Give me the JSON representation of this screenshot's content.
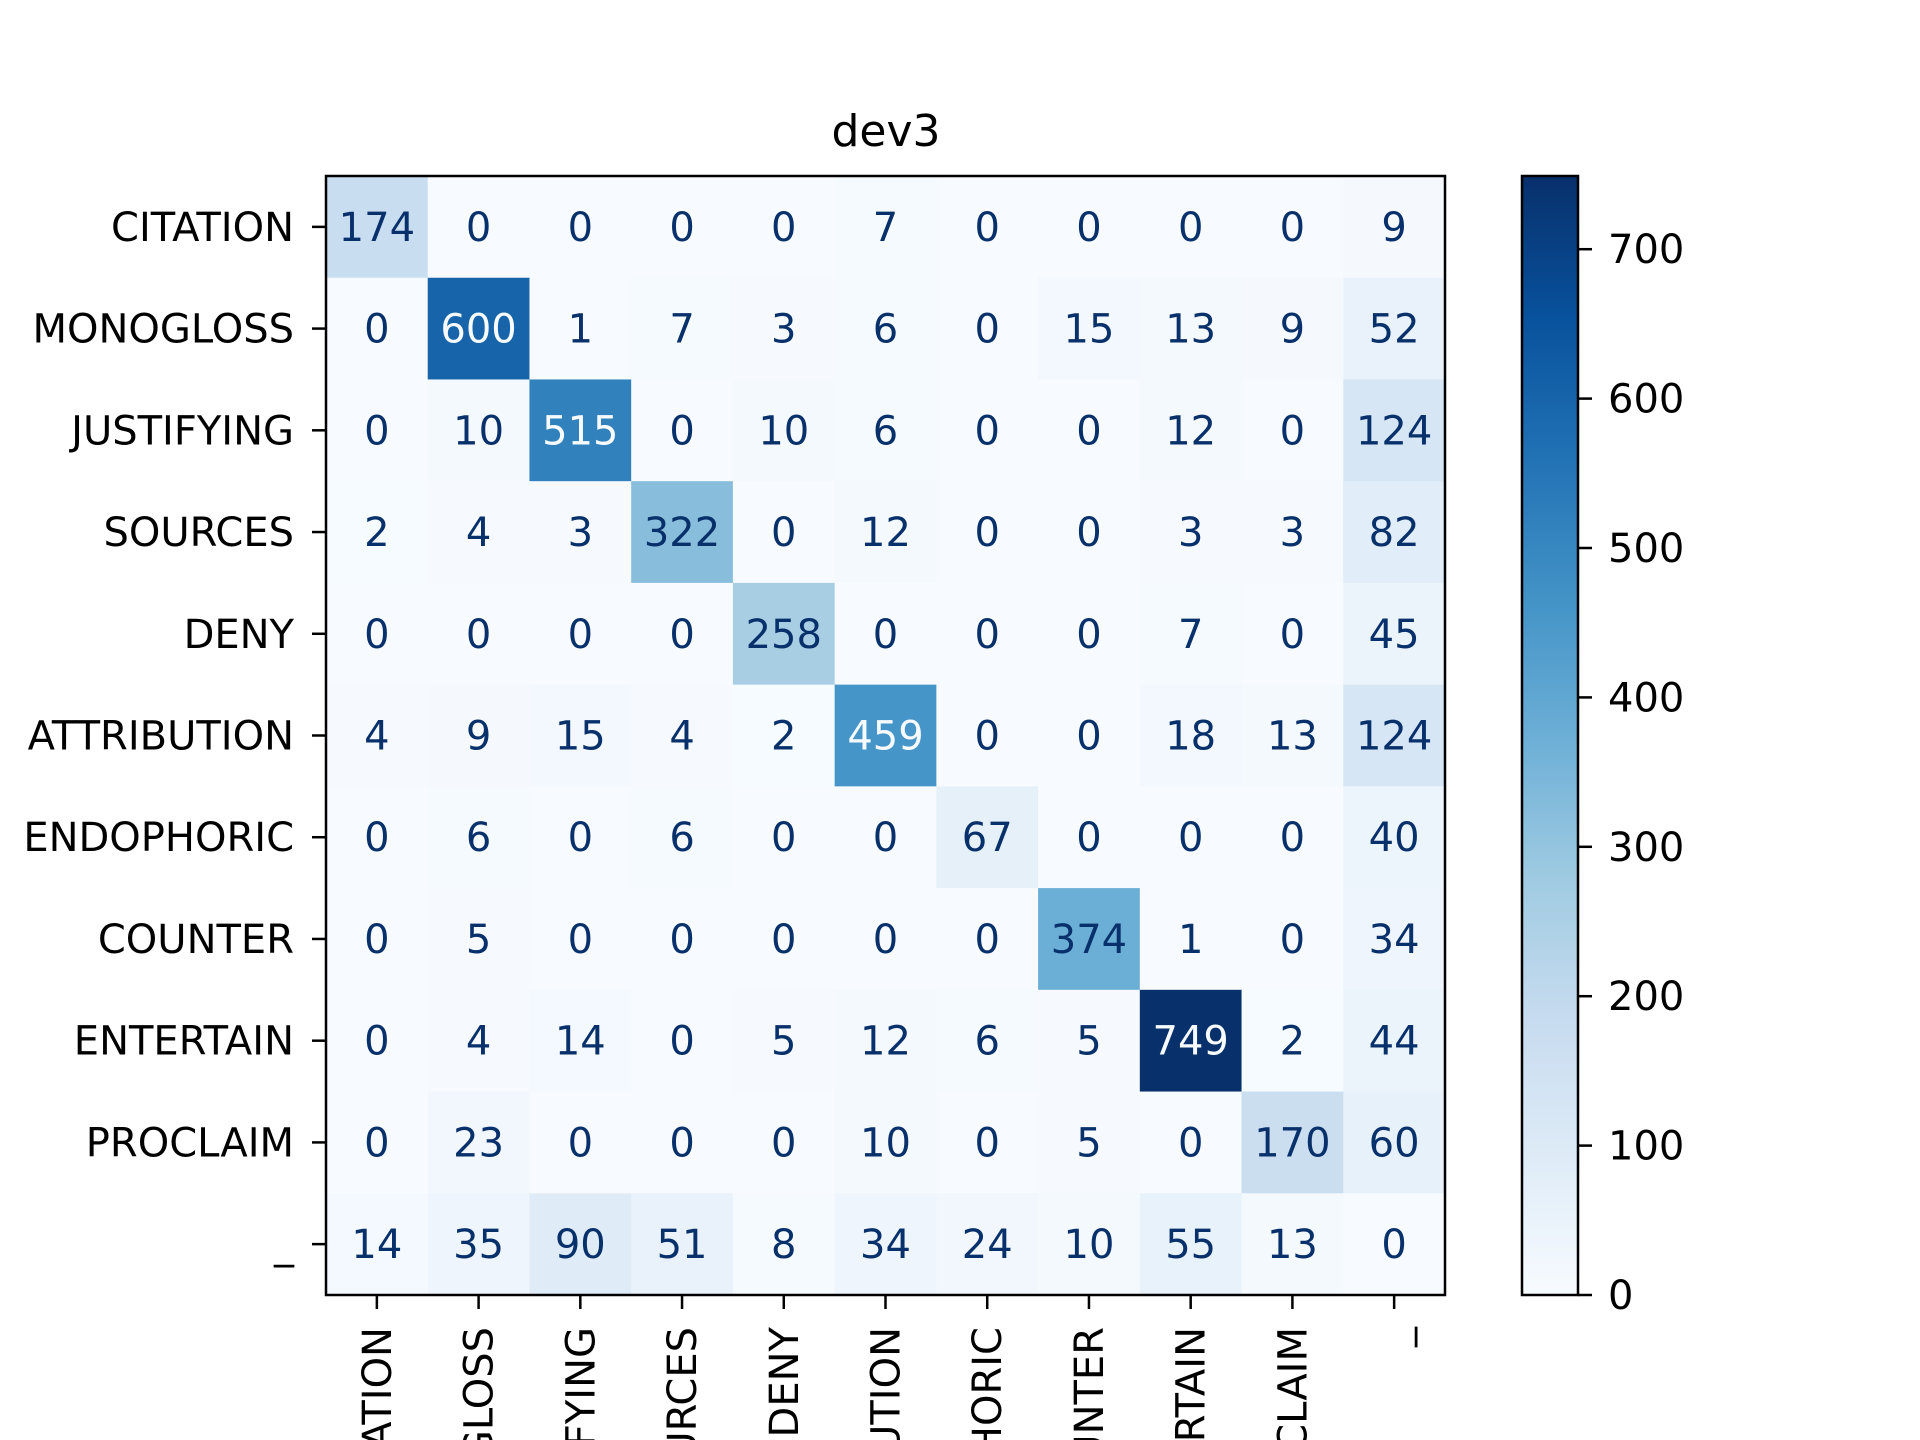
{
  "chart_data": {
    "type": "heatmap",
    "title": "dev3",
    "xlabel": "",
    "ylabel": "",
    "colormap": "Blues",
    "color_range": [
      0,
      749
    ],
    "row_labels": [
      "CITATION",
      "MONOGLOSS",
      "JUSTIFYING",
      "SOURCES",
      "DENY",
      "ATTRIBUTION",
      "ENDOPHORIC",
      "COUNTER",
      "ENTERTAIN",
      "PROCLAIM",
      "_"
    ],
    "col_labels": [
      "ATION",
      "GLOSS",
      "IFYING",
      "URCES",
      "DENY",
      "UTION",
      "HORIC",
      "UNTER",
      "RTAIN",
      "CLAIM",
      "_"
    ],
    "values": [
      [
        174,
        0,
        0,
        0,
        0,
        7,
        0,
        0,
        0,
        0,
        9
      ],
      [
        0,
        600,
        1,
        7,
        3,
        6,
        0,
        15,
        13,
        9,
        52
      ],
      [
        0,
        10,
        515,
        0,
        10,
        6,
        0,
        0,
        12,
        0,
        124
      ],
      [
        2,
        4,
        3,
        322,
        0,
        12,
        0,
        0,
        3,
        3,
        82
      ],
      [
        0,
        0,
        0,
        0,
        258,
        0,
        0,
        0,
        7,
        0,
        45
      ],
      [
        4,
        9,
        15,
        4,
        2,
        459,
        0,
        0,
        18,
        13,
        124
      ],
      [
        0,
        6,
        0,
        6,
        0,
        0,
        67,
        0,
        0,
        0,
        40
      ],
      [
        0,
        5,
        0,
        0,
        0,
        0,
        0,
        374,
        1,
        0,
        34
      ],
      [
        0,
        4,
        14,
        0,
        5,
        12,
        6,
        5,
        749,
        2,
        44
      ],
      [
        0,
        23,
        0,
        0,
        0,
        10,
        0,
        5,
        0,
        170,
        60
      ],
      [
        14,
        35,
        90,
        51,
        8,
        34,
        24,
        10,
        55,
        13,
        0
      ]
    ],
    "colorbar": {
      "ticks": [
        0,
        100,
        200,
        300,
        400,
        500,
        600,
        700
      ],
      "range": [
        0,
        749
      ]
    },
    "grid": false
  }
}
